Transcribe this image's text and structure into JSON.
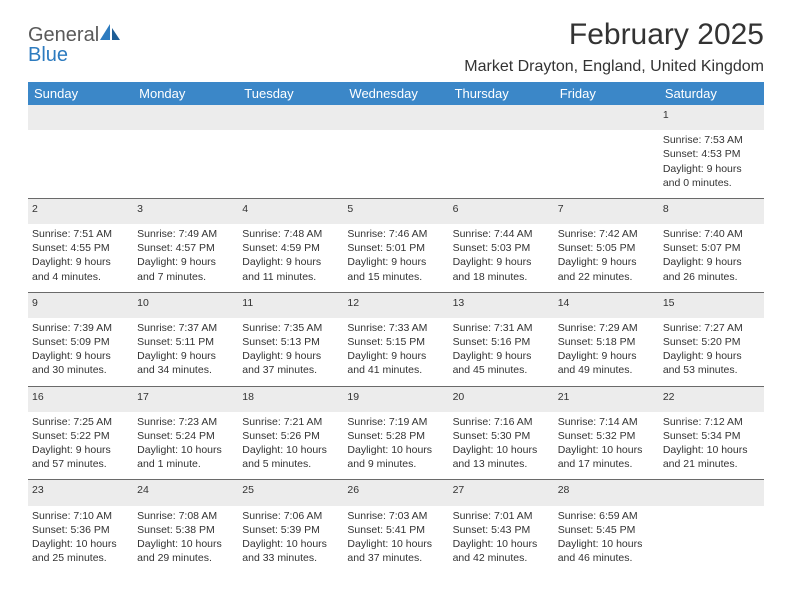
{
  "logo": {
    "part1": "General",
    "part2": "Blue"
  },
  "title": "February 2025",
  "location": "Market Drayton, England, United Kingdom",
  "colors": {
    "header_bg": "#3b87c8",
    "header_text": "#ffffff",
    "daynum_bg": "#ececec",
    "border": "#6a6a6a",
    "body_text": "#333333",
    "logo_gray": "#5a5a5a",
    "logo_blue": "#2d7bbf"
  },
  "weekdays": [
    "Sunday",
    "Monday",
    "Tuesday",
    "Wednesday",
    "Thursday",
    "Friday",
    "Saturday"
  ],
  "weeks": [
    {
      "nums": [
        "",
        "",
        "",
        "",
        "",
        "",
        "1"
      ],
      "cells": [
        null,
        null,
        null,
        null,
        null,
        null,
        {
          "sunrise": "Sunrise: 7:53 AM",
          "sunset": "Sunset: 4:53 PM",
          "daylight": "Daylight: 9 hours and 0 minutes."
        }
      ]
    },
    {
      "nums": [
        "2",
        "3",
        "4",
        "5",
        "6",
        "7",
        "8"
      ],
      "cells": [
        {
          "sunrise": "Sunrise: 7:51 AM",
          "sunset": "Sunset: 4:55 PM",
          "daylight": "Daylight: 9 hours and 4 minutes."
        },
        {
          "sunrise": "Sunrise: 7:49 AM",
          "sunset": "Sunset: 4:57 PM",
          "daylight": "Daylight: 9 hours and 7 minutes."
        },
        {
          "sunrise": "Sunrise: 7:48 AM",
          "sunset": "Sunset: 4:59 PM",
          "daylight": "Daylight: 9 hours and 11 minutes."
        },
        {
          "sunrise": "Sunrise: 7:46 AM",
          "sunset": "Sunset: 5:01 PM",
          "daylight": "Daylight: 9 hours and 15 minutes."
        },
        {
          "sunrise": "Sunrise: 7:44 AM",
          "sunset": "Sunset: 5:03 PM",
          "daylight": "Daylight: 9 hours and 18 minutes."
        },
        {
          "sunrise": "Sunrise: 7:42 AM",
          "sunset": "Sunset: 5:05 PM",
          "daylight": "Daylight: 9 hours and 22 minutes."
        },
        {
          "sunrise": "Sunrise: 7:40 AM",
          "sunset": "Sunset: 5:07 PM",
          "daylight": "Daylight: 9 hours and 26 minutes."
        }
      ]
    },
    {
      "nums": [
        "9",
        "10",
        "11",
        "12",
        "13",
        "14",
        "15"
      ],
      "cells": [
        {
          "sunrise": "Sunrise: 7:39 AM",
          "sunset": "Sunset: 5:09 PM",
          "daylight": "Daylight: 9 hours and 30 minutes."
        },
        {
          "sunrise": "Sunrise: 7:37 AM",
          "sunset": "Sunset: 5:11 PM",
          "daylight": "Daylight: 9 hours and 34 minutes."
        },
        {
          "sunrise": "Sunrise: 7:35 AM",
          "sunset": "Sunset: 5:13 PM",
          "daylight": "Daylight: 9 hours and 37 minutes."
        },
        {
          "sunrise": "Sunrise: 7:33 AM",
          "sunset": "Sunset: 5:15 PM",
          "daylight": "Daylight: 9 hours and 41 minutes."
        },
        {
          "sunrise": "Sunrise: 7:31 AM",
          "sunset": "Sunset: 5:16 PM",
          "daylight": "Daylight: 9 hours and 45 minutes."
        },
        {
          "sunrise": "Sunrise: 7:29 AM",
          "sunset": "Sunset: 5:18 PM",
          "daylight": "Daylight: 9 hours and 49 minutes."
        },
        {
          "sunrise": "Sunrise: 7:27 AM",
          "sunset": "Sunset: 5:20 PM",
          "daylight": "Daylight: 9 hours and 53 minutes."
        }
      ]
    },
    {
      "nums": [
        "16",
        "17",
        "18",
        "19",
        "20",
        "21",
        "22"
      ],
      "cells": [
        {
          "sunrise": "Sunrise: 7:25 AM",
          "sunset": "Sunset: 5:22 PM",
          "daylight": "Daylight: 9 hours and 57 minutes."
        },
        {
          "sunrise": "Sunrise: 7:23 AM",
          "sunset": "Sunset: 5:24 PM",
          "daylight": "Daylight: 10 hours and 1 minute."
        },
        {
          "sunrise": "Sunrise: 7:21 AM",
          "sunset": "Sunset: 5:26 PM",
          "daylight": "Daylight: 10 hours and 5 minutes."
        },
        {
          "sunrise": "Sunrise: 7:19 AM",
          "sunset": "Sunset: 5:28 PM",
          "daylight": "Daylight: 10 hours and 9 minutes."
        },
        {
          "sunrise": "Sunrise: 7:16 AM",
          "sunset": "Sunset: 5:30 PM",
          "daylight": "Daylight: 10 hours and 13 minutes."
        },
        {
          "sunrise": "Sunrise: 7:14 AM",
          "sunset": "Sunset: 5:32 PM",
          "daylight": "Daylight: 10 hours and 17 minutes."
        },
        {
          "sunrise": "Sunrise: 7:12 AM",
          "sunset": "Sunset: 5:34 PM",
          "daylight": "Daylight: 10 hours and 21 minutes."
        }
      ]
    },
    {
      "nums": [
        "23",
        "24",
        "25",
        "26",
        "27",
        "28",
        ""
      ],
      "cells": [
        {
          "sunrise": "Sunrise: 7:10 AM",
          "sunset": "Sunset: 5:36 PM",
          "daylight": "Daylight: 10 hours and 25 minutes."
        },
        {
          "sunrise": "Sunrise: 7:08 AM",
          "sunset": "Sunset: 5:38 PM",
          "daylight": "Daylight: 10 hours and 29 minutes."
        },
        {
          "sunrise": "Sunrise: 7:06 AM",
          "sunset": "Sunset: 5:39 PM",
          "daylight": "Daylight: 10 hours and 33 minutes."
        },
        {
          "sunrise": "Sunrise: 7:03 AM",
          "sunset": "Sunset: 5:41 PM",
          "daylight": "Daylight: 10 hours and 37 minutes."
        },
        {
          "sunrise": "Sunrise: 7:01 AM",
          "sunset": "Sunset: 5:43 PM",
          "daylight": "Daylight: 10 hours and 42 minutes."
        },
        {
          "sunrise": "Sunrise: 6:59 AM",
          "sunset": "Sunset: 5:45 PM",
          "daylight": "Daylight: 10 hours and 46 minutes."
        },
        null
      ]
    }
  ]
}
